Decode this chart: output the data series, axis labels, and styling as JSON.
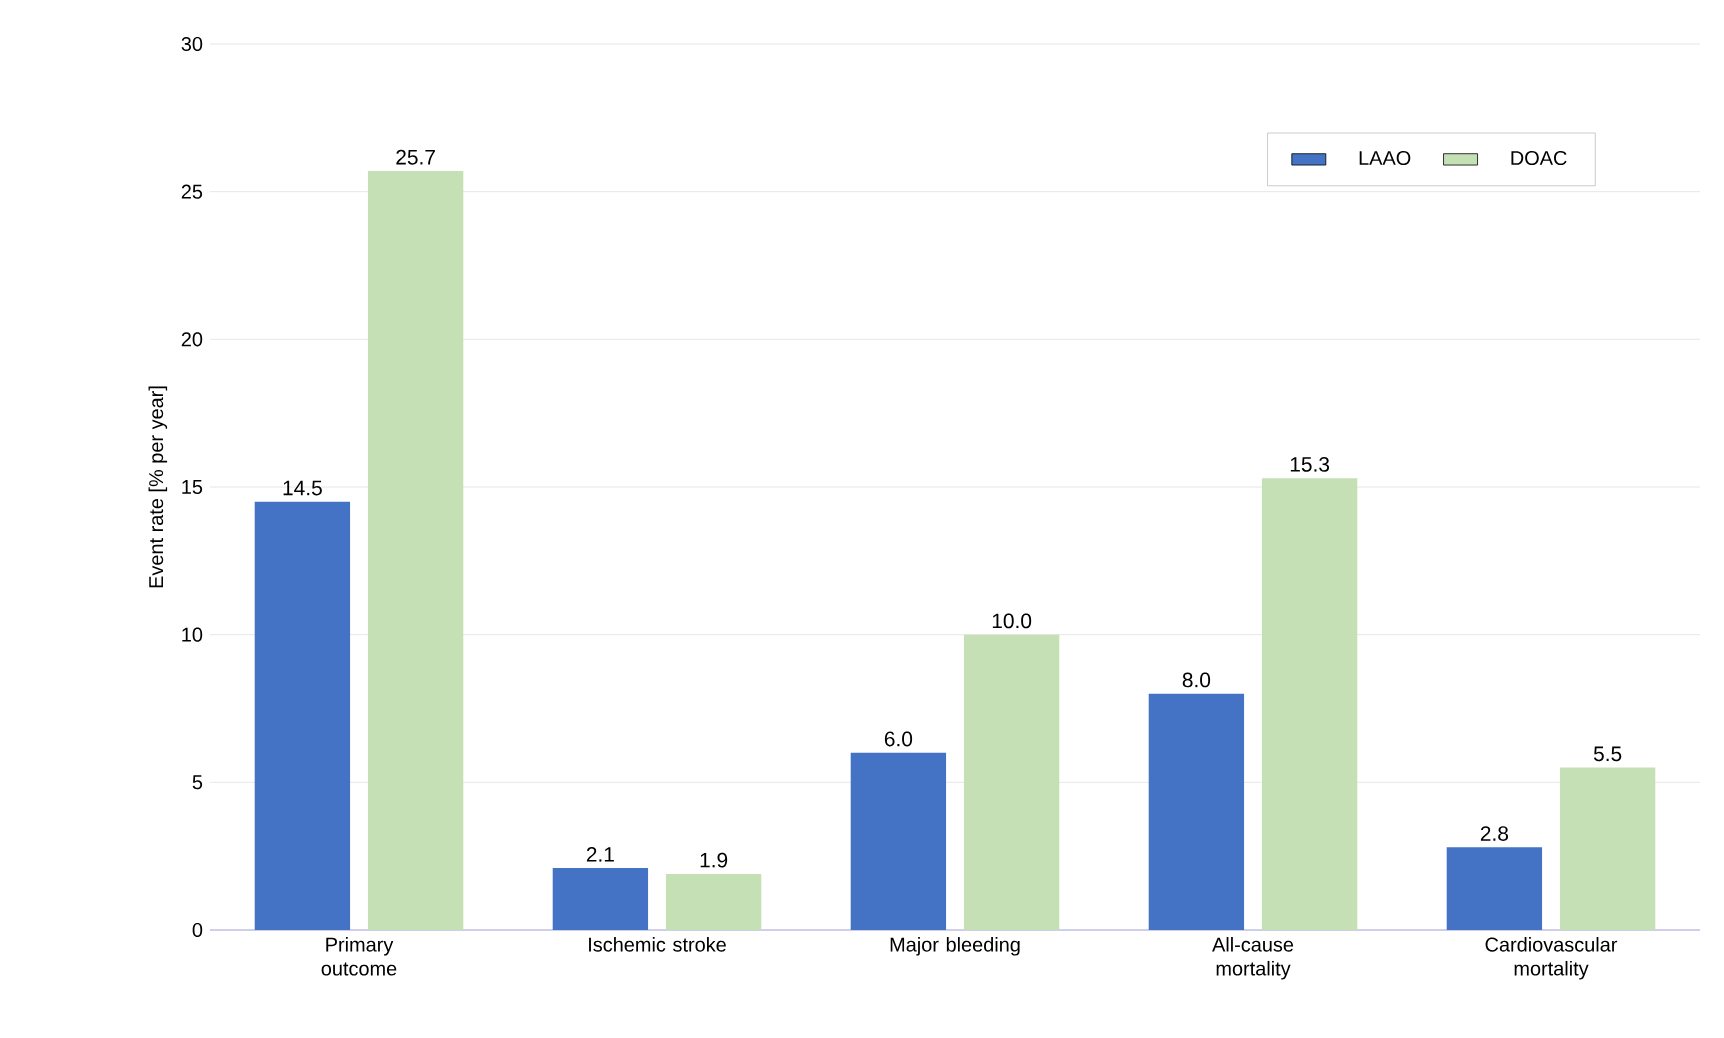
{
  "chart_data": {
    "type": "bar",
    "ylabel": "Event rate [% per year]",
    "categories": [
      "Primary outcome",
      "Ischemic stroke",
      "Major bleeding",
      "All-cause mortality",
      "Cardiovascular mortality"
    ],
    "series": [
      {
        "name": "LAAO",
        "color": "#4472c4",
        "values": [
          14.5,
          2.1,
          6.0,
          8.0,
          2.8
        ],
        "value_labels": [
          "14.5",
          "2.1",
          "6.0",
          "8.0",
          "2.8"
        ]
      },
      {
        "name": "DOAC",
        "color": "#c5e0b4",
        "values": [
          25.7,
          1.9,
          10.0,
          15.3,
          5.5
        ],
        "value_labels": [
          "25.7",
          "1.9",
          "10.0",
          "15.3",
          "5.5"
        ]
      }
    ],
    "ylim": [
      0,
      30
    ],
    "yticks": [
      0,
      5,
      10,
      15,
      20,
      25,
      30
    ],
    "grid": "y",
    "legend": "top right"
  }
}
